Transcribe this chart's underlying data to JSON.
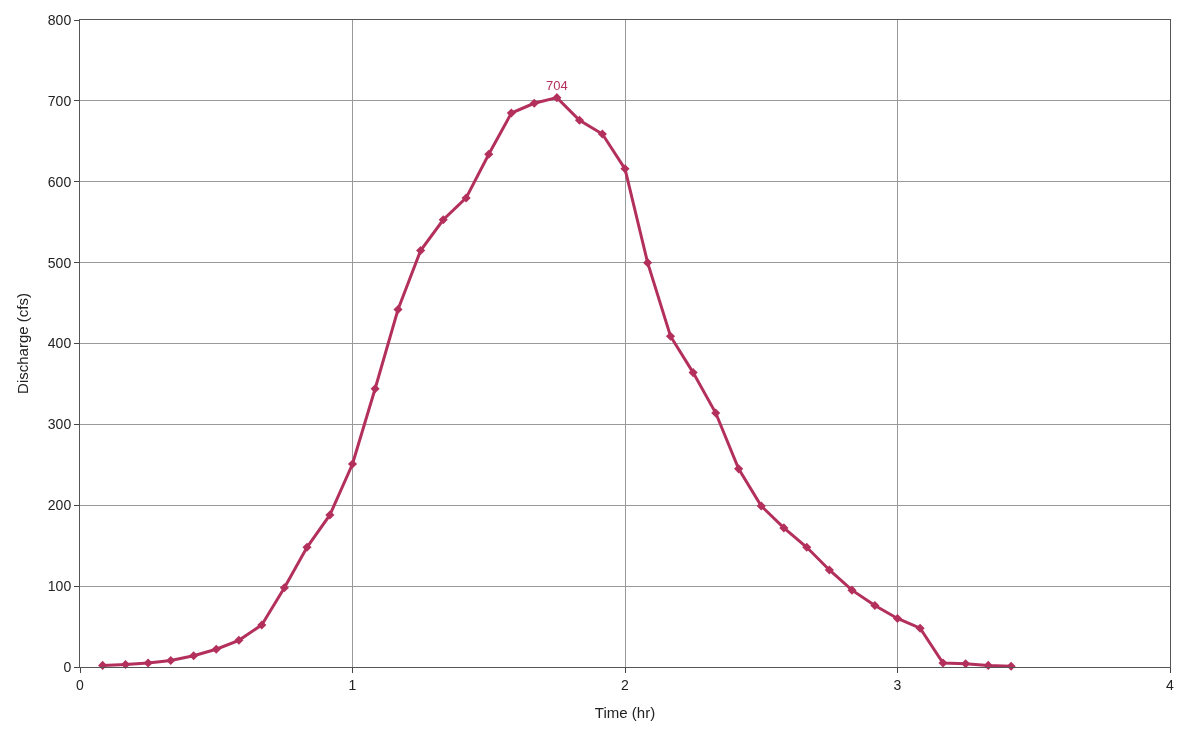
{
  "chart_data": {
    "type": "line",
    "xlabel": "Time (hr)",
    "ylabel": "Discharge (cfs)",
    "x": [
      0.083,
      0.167,
      0.25,
      0.333,
      0.417,
      0.5,
      0.583,
      0.667,
      0.75,
      0.833,
      0.917,
      1.0,
      1.083,
      1.167,
      1.25,
      1.333,
      1.417,
      1.5,
      1.583,
      1.667,
      1.75,
      1.833,
      1.917,
      2.0,
      2.083,
      2.167,
      2.25,
      2.333,
      2.417,
      2.5,
      2.583,
      2.667,
      2.75,
      2.833,
      2.917,
      3.0,
      3.083,
      3.167,
      3.25,
      3.333,
      3.417
    ],
    "series": [
      {
        "color": "#b3305c",
        "values": [
          2,
          3,
          5,
          8,
          14,
          22,
          33,
          52,
          98,
          148,
          188,
          251,
          344,
          442,
          515,
          553,
          580,
          634,
          685,
          697,
          704,
          676,
          659,
          616,
          500,
          409,
          364,
          314,
          245,
          199,
          172,
          148,
          120,
          95,
          76,
          60,
          48,
          5,
          4,
          2,
          1
        ]
      }
    ],
    "annotations": [
      {
        "text": "704",
        "x": 1.75,
        "y": 704
      }
    ],
    "xlim": [
      0,
      4
    ],
    "xticks": [
      0,
      1,
      2,
      3,
      4
    ],
    "ylim": [
      0,
      800
    ],
    "yticks": [
      0,
      100,
      200,
      300,
      400,
      500,
      600,
      700,
      800
    ],
    "grid": true,
    "legend": false,
    "marker": "diamond",
    "line_style": "solid"
  }
}
